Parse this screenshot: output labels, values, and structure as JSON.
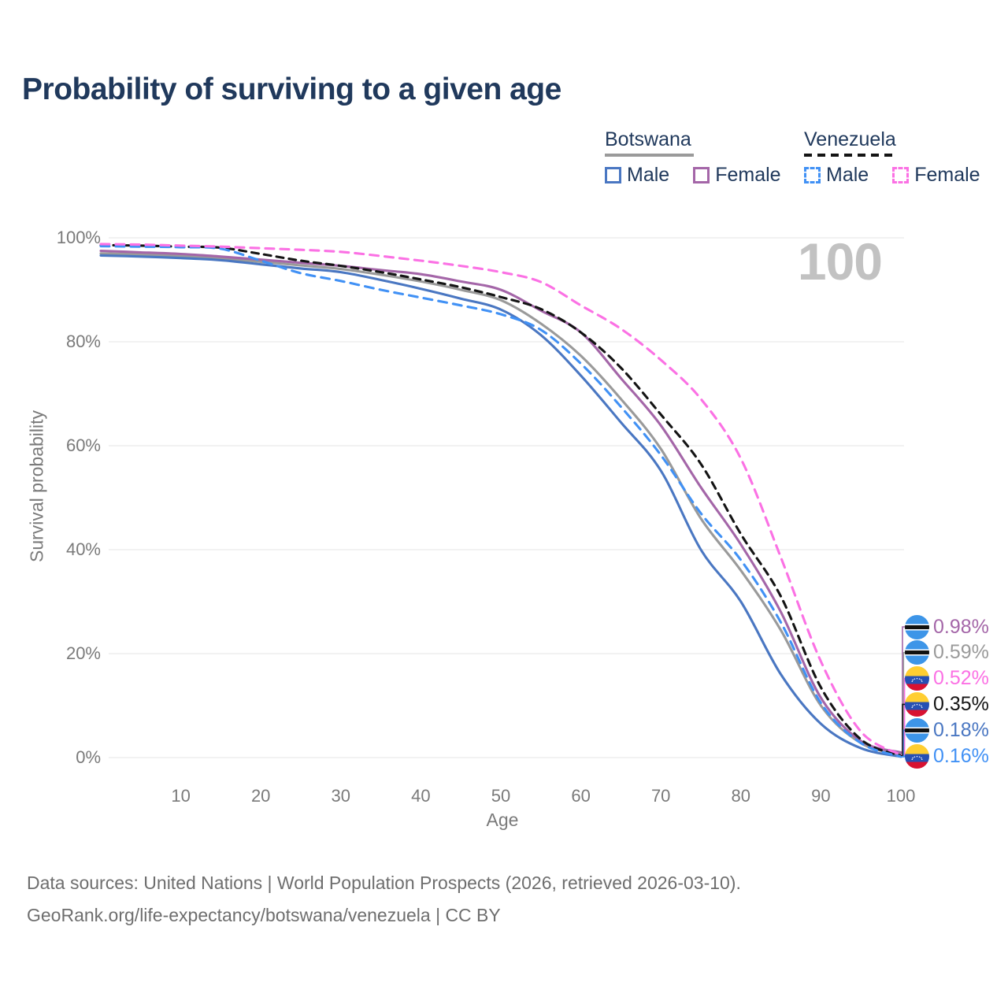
{
  "title": "Probability of surviving to a given age",
  "watermark_age": "100",
  "legend": {
    "groups": [
      {
        "country": "Botswana",
        "line_style": "solid",
        "underline_color": "#9a9a9a",
        "items": [
          {
            "label": "Male",
            "color": "#4a77c2"
          },
          {
            "label": "Female",
            "color": "#a466a8"
          }
        ]
      },
      {
        "country": "Venezuela",
        "line_style": "dashed",
        "underline_color": "#141414",
        "items": [
          {
            "label": "Male",
            "color": "#4191f5"
          },
          {
            "label": "Female",
            "color": "#fb71e4"
          }
        ]
      }
    ]
  },
  "chart_data": {
    "type": "line",
    "title": "Probability of surviving to a given age",
    "xlabel": "Age",
    "ylabel": "Survival probability",
    "xlim": [
      0,
      100
    ],
    "ylim": [
      0,
      100
    ],
    "grid": "horizontal",
    "x_ticks": [
      10,
      20,
      30,
      40,
      50,
      60,
      70,
      80,
      90,
      100
    ],
    "y_ticks": [
      100,
      80,
      60,
      40,
      20,
      0
    ],
    "y_tick_labels": [
      "100%",
      "80%",
      "60%",
      "40%",
      "20%",
      "0%"
    ],
    "x": [
      0,
      5,
      10,
      15,
      20,
      25,
      30,
      35,
      40,
      45,
      50,
      55,
      60,
      65,
      70,
      75,
      80,
      85,
      90,
      95,
      100
    ],
    "series": [
      {
        "name": "Botswana",
        "country": "Botswana",
        "color": "#9a9a9a",
        "dash": null,
        "values": [
          97.0,
          96.8,
          96.5,
          96.0,
          95.4,
          94.7,
          94.0,
          92.9,
          91.6,
          90.0,
          88.0,
          83.5,
          77.3,
          69.0,
          59.4,
          46.0,
          36.0,
          24.5,
          10.0,
          2.8,
          0.59
        ]
      },
      {
        "name": "Botswana Male",
        "country": "Botswana",
        "color": "#4a77c2",
        "dash": null,
        "values": [
          96.6,
          96.4,
          96.1,
          95.7,
          94.9,
          94.1,
          93.4,
          91.9,
          90.2,
          88.3,
          86.2,
          81.3,
          73.5,
          64.5,
          55.2,
          40.0,
          30.0,
          16.0,
          6.5,
          1.8,
          0.18
        ]
      },
      {
        "name": "Botswana Female",
        "country": "Botswana",
        "color": "#a466a8",
        "dash": null,
        "values": [
          97.5,
          97.2,
          96.9,
          96.4,
          95.8,
          95.2,
          94.6,
          93.8,
          93.0,
          91.6,
          90.0,
          86.0,
          81.8,
          73.0,
          63.9,
          52.0,
          41.0,
          28.0,
          11.5,
          3.2,
          0.98
        ]
      },
      {
        "name": "Venezuela",
        "country": "Venezuela",
        "color": "#141414",
        "dash": "9 7",
        "values": [
          98.6,
          98.5,
          98.3,
          98.1,
          96.9,
          95.6,
          94.6,
          93.4,
          92.0,
          90.5,
          88.6,
          86.3,
          81.8,
          75.0,
          66.0,
          56.5,
          43.0,
          31.0,
          13.5,
          3.5,
          0.35
        ]
      },
      {
        "name": "Venezuela Male",
        "country": "Venezuela",
        "color": "#4191f5",
        "dash": "11 8",
        "values": [
          98.4,
          98.3,
          98.2,
          97.9,
          95.6,
          93.2,
          91.7,
          90.0,
          88.5,
          87.0,
          85.3,
          82.3,
          75.8,
          67.5,
          58.2,
          47.0,
          38.0,
          26.0,
          10.5,
          2.8,
          0.16
        ]
      },
      {
        "name": "Venezuela Female",
        "country": "Venezuela",
        "color": "#fb71e4",
        "dash": "11 8",
        "values": [
          98.8,
          98.7,
          98.5,
          98.3,
          98.0,
          97.7,
          97.3,
          96.5,
          95.6,
          94.6,
          93.4,
          91.5,
          87.0,
          82.5,
          76.5,
          69.0,
          57.5,
          38.5,
          18.5,
          5.0,
          0.52
        ]
      }
    ],
    "end_labels": [
      {
        "text": "0.98%",
        "series": "Botswana Female",
        "flag": "Botswana",
        "color": "#a466a8"
      },
      {
        "text": "0.59%",
        "series": "Botswana",
        "flag": "Botswana",
        "color": "#9a9a9a"
      },
      {
        "text": "0.52%",
        "series": "Venezuela Female",
        "flag": "Venezuela",
        "color": "#fb71e4"
      },
      {
        "text": "0.35%",
        "series": "Venezuela",
        "flag": "Venezuela",
        "color": "#141414"
      },
      {
        "text": "0.18%",
        "series": "Botswana Male",
        "flag": "Botswana",
        "color": "#4a77c2"
      },
      {
        "text": "0.16%",
        "series": "Venezuela Male",
        "flag": "Venezuela",
        "color": "#4191f5"
      }
    ],
    "age_marker": "100"
  },
  "footer": {
    "line1": "Data sources: United Nations | World Population Prospects (2026, retrieved 2026-03-10).",
    "line2": "GeoRank.org/life-expectancy/botswana/venezuela | CC BY"
  }
}
